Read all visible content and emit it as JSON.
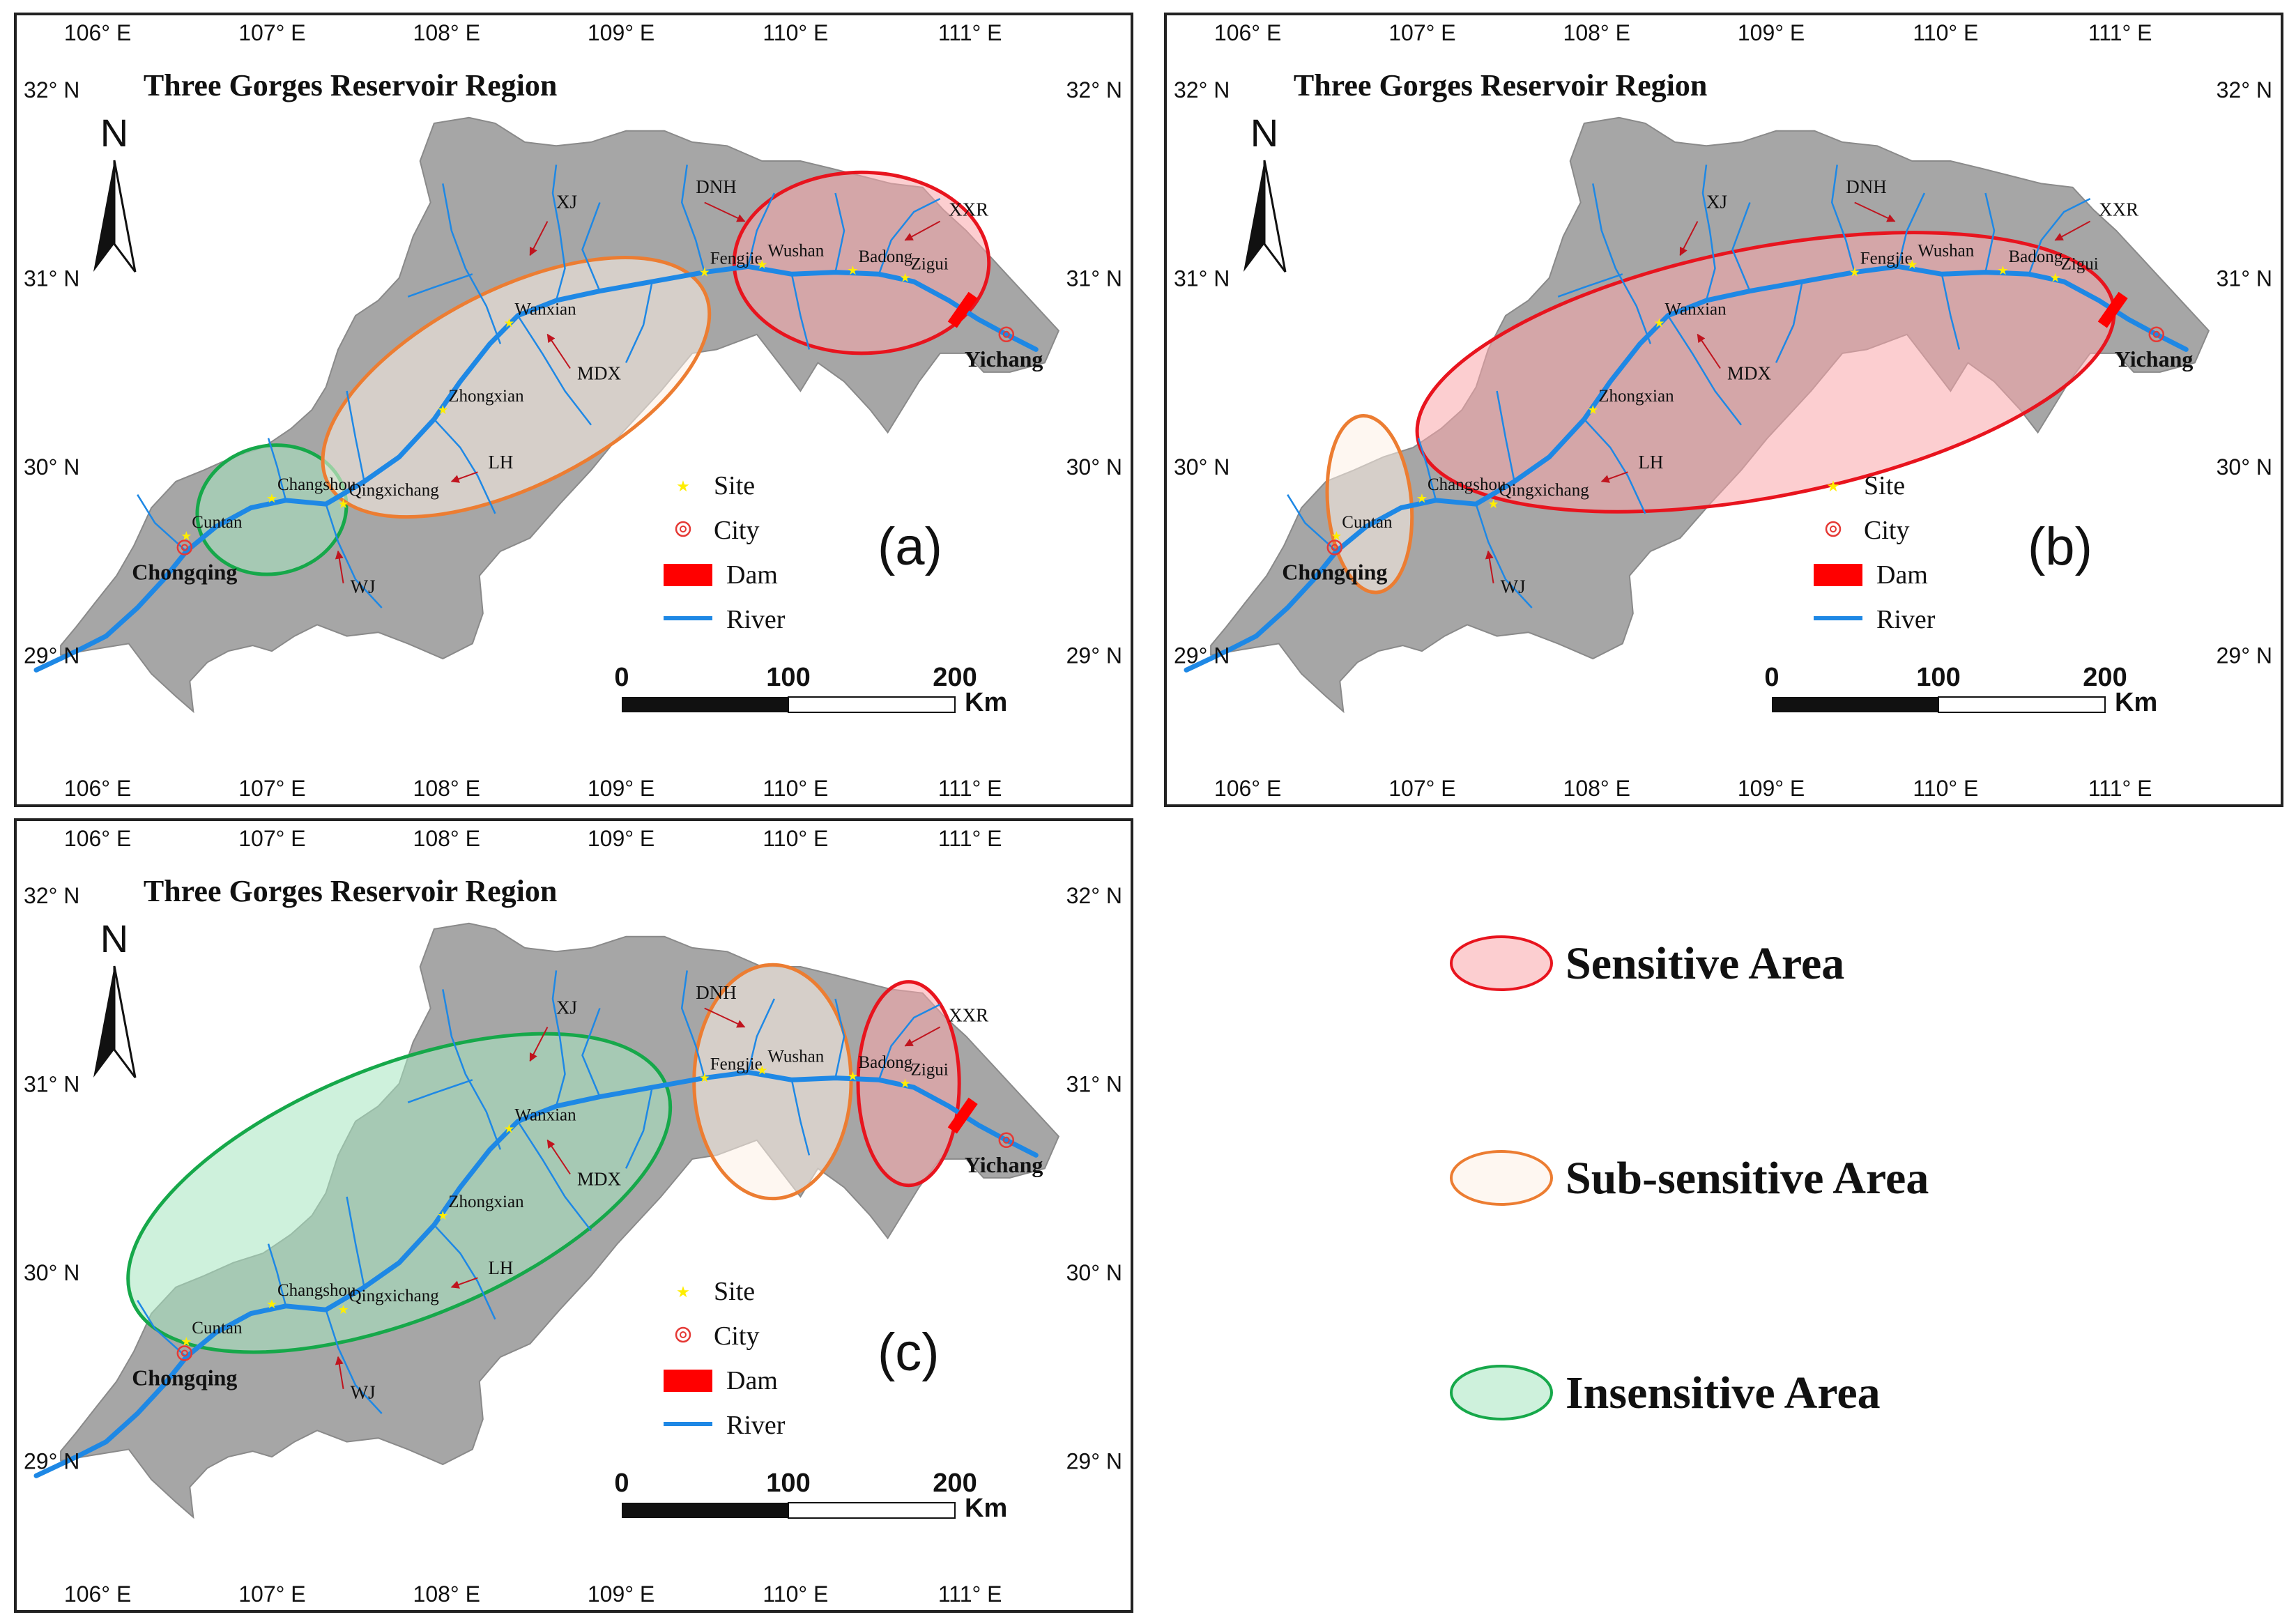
{
  "maps": [
    {
      "id": "a",
      "title": "Three Gorges Reservoir Region",
      "panel_label": "(a)",
      "zones": [
        {
          "category": "insensitive",
          "label": "Cuntan–Changshou",
          "lon": 107.07,
          "lat": 29.77,
          "rx_deg": 0.43,
          "ry_deg": 0.34,
          "rot": -12
        },
        {
          "category": "sub-sensitive",
          "label": "Changshou–Fengjie",
          "lon": 108.47,
          "lat": 30.42,
          "rx_deg": 1.21,
          "ry_deg": 0.52,
          "rot": -27
        },
        {
          "category": "sensitive",
          "label": "Fengjie–Yichang",
          "lon": 110.45,
          "lat": 31.08,
          "rx_deg": 0.73,
          "ry_deg": 0.48,
          "rot": 0
        }
      ]
    },
    {
      "id": "b",
      "title": "Three Gorges Reservoir Region",
      "panel_label": "(b)",
      "zones": [
        {
          "category": "sub-sensitive",
          "label": "Cuntan–Changshou",
          "lon": 106.77,
          "lat": 29.8,
          "rx_deg": 0.24,
          "ry_deg": 0.47,
          "rot": -5
        },
        {
          "category": "sensitive",
          "label": "Changshou–Yichang",
          "lon": 109.04,
          "lat": 30.5,
          "rx_deg": 2.03,
          "ry_deg": 0.66,
          "rot": -11
        }
      ]
    },
    {
      "id": "c",
      "title": "Three Gorges Reservoir Region",
      "panel_label": "(c)",
      "zones": [
        {
          "category": "insensitive",
          "label": "Cuntan–Wanxian",
          "lon": 107.8,
          "lat": 30.42,
          "rx_deg": 1.65,
          "ry_deg": 0.67,
          "rot": -22
        },
        {
          "category": "sub-sensitive",
          "label": "Fengjie–Wushan",
          "lon": 109.94,
          "lat": 31.01,
          "rx_deg": 0.45,
          "ry_deg": 0.62,
          "rot": 0
        },
        {
          "category": "sensitive",
          "label": "Badong–Zigui",
          "lon": 110.72,
          "lat": 31.0,
          "rx_deg": 0.29,
          "ry_deg": 0.54,
          "rot": 0
        }
      ]
    }
  ],
  "graticule": {
    "lon_labels": [
      "106° E",
      "107° E",
      "108° E",
      "109° E",
      "110° E",
      "111° E"
    ],
    "lat_labels": [
      "32° N",
      "31° N",
      "30° N",
      "29° N"
    ],
    "lon_values": [
      106,
      107,
      108,
      109,
      110,
      111
    ],
    "lat_values": [
      32,
      31,
      30,
      29
    ]
  },
  "north_arrow": {
    "label": "N"
  },
  "sites": [
    {
      "name": "Cuntan",
      "lon": 106.58,
      "lat": 29.63
    },
    {
      "name": "Changshou",
      "lon": 107.07,
      "lat": 29.83
    },
    {
      "name": "Qingxichang",
      "lon": 107.48,
      "lat": 29.8
    },
    {
      "name": "Zhongxian",
      "lon": 108.05,
      "lat": 30.3
    },
    {
      "name": "Wanxian",
      "lon": 108.43,
      "lat": 30.76
    },
    {
      "name": "Fengjie",
      "lon": 109.55,
      "lat": 31.03
    },
    {
      "name": "Wushan",
      "lon": 109.88,
      "lat": 31.07
    },
    {
      "name": "Badong",
      "lon": 110.4,
      "lat": 31.04
    },
    {
      "name": "Zigui",
      "lon": 110.7,
      "lat": 31.0
    }
  ],
  "cities": [
    {
      "name": "Chongqing",
      "lon": 106.57,
      "lat": 29.57
    },
    {
      "name": "Yichang",
      "lon": 111.28,
      "lat": 30.7
    }
  ],
  "tributaries": [
    {
      "name": "XJ",
      "lon": 108.7,
      "lat": 31.37
    },
    {
      "name": "DNH",
      "lon": 109.5,
      "lat": 31.45
    },
    {
      "name": "XXR",
      "lon": 110.95,
      "lat": 31.33
    },
    {
      "name": "MDX",
      "lon": 108.82,
      "lat": 30.46
    },
    {
      "name": "LH",
      "lon": 108.31,
      "lat": 29.99
    },
    {
      "name": "WJ",
      "lon": 107.52,
      "lat": 29.33
    }
  ],
  "map_legend": {
    "site": "Site",
    "city": "City",
    "dam": "Dam",
    "river": "River"
  },
  "scale_bar": {
    "ticks": [
      "0",
      "100",
      "200"
    ],
    "unit": "Km"
  },
  "zone_legend": [
    {
      "category": "sensitive",
      "label": "Sensitive Area"
    },
    {
      "category": "sub-sensitive",
      "label": "Sub-sensitive Area"
    },
    {
      "category": "insensitive",
      "label": "Insensitive Area"
    }
  ],
  "colors": {
    "land": "#a6a6a6",
    "land_border": "#8a8a8a",
    "river": "#1e88e5",
    "site": "#ffee00",
    "city": "#e53935",
    "dam": "#ff0000",
    "sensitive_stroke": "#e8141e",
    "sensitive_fill": "#f9a6aa",
    "sub_sensitive_stroke": "#ec7d32",
    "sub_sensitive_fill": "#fdf0e6",
    "insensitive_stroke": "#16a84a",
    "insensitive_fill": "#a6e6c0",
    "frame": "#222222",
    "arrow": "#c0141e"
  }
}
